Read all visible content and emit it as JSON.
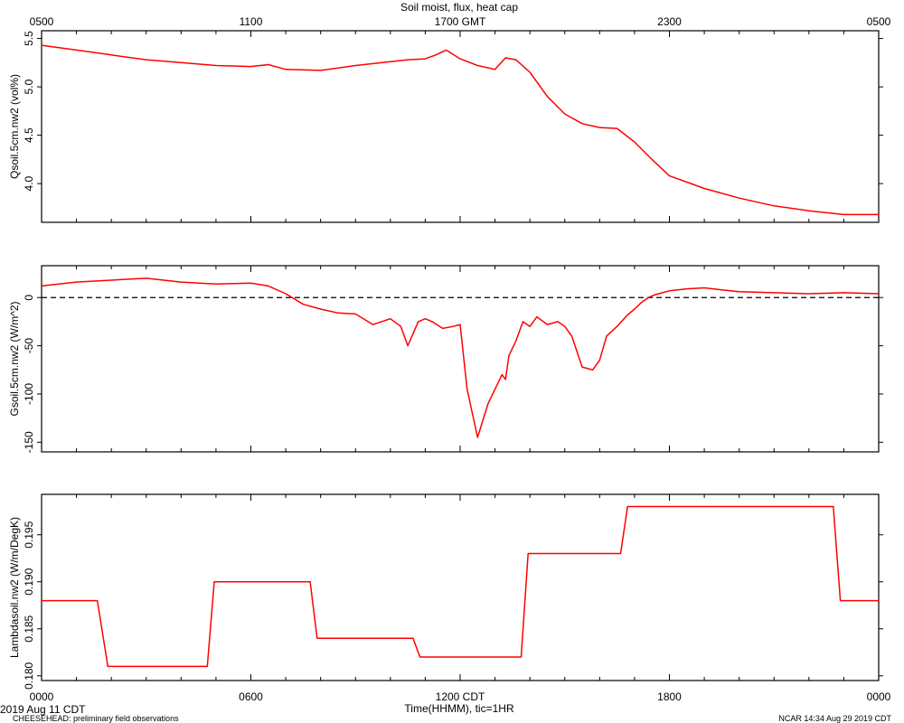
{
  "title": "Soil moist, flux, heat cap",
  "top_axis": {
    "label_suffix": "GMT",
    "ticks": [
      "0500",
      "1100",
      "1700",
      "2300",
      "0500"
    ]
  },
  "bottom_axis": {
    "label": "Time(HHMM), tic=1HR",
    "ticks": [
      "0000",
      "0600",
      "1200 CDT",
      "1800",
      "0000"
    ]
  },
  "footer": {
    "left_date": "2019 Aug 11 CDT",
    "left_project": "CHEESEHEAD: preliminary field observations",
    "right": "NCAR 14:34 Aug 29 2019 CDT"
  },
  "line_color": "#ff0000",
  "chart_data": [
    {
      "type": "line",
      "ylabel": "Qsoil.5cm.nw2 (vol%)",
      "ylim": [
        3.6,
        5.58
      ],
      "yticks": [
        4.0,
        4.5,
        5.0,
        5.5
      ],
      "ytick_labels": [
        "4.0",
        "4.5",
        "5.0",
        "5.5"
      ],
      "x_hours": [
        0,
        1,
        2,
        3,
        4,
        5,
        6,
        6.5,
        7,
        8,
        9,
        10,
        10.5,
        11,
        11.3,
        11.6,
        12,
        12.5,
        13,
        13.3,
        13.6,
        14,
        14.5,
        15,
        15.5,
        16,
        16.5,
        17,
        17.5,
        18,
        19,
        20,
        21,
        22,
        23,
        24
      ],
      "values": [
        5.43,
        5.38,
        5.33,
        5.28,
        5.25,
        5.22,
        5.21,
        5.23,
        5.18,
        5.17,
        5.22,
        5.26,
        5.28,
        5.29,
        5.33,
        5.38,
        5.29,
        5.22,
        5.18,
        5.3,
        5.28,
        5.15,
        4.9,
        4.72,
        4.62,
        4.58,
        4.57,
        4.43,
        4.25,
        4.08,
        3.95,
        3.85,
        3.77,
        3.72,
        3.68,
        3.68
      ]
    },
    {
      "type": "line",
      "ylabel": "Gsoil.5cm.nw2 (W/m^2)",
      "ylim": [
        -160,
        33
      ],
      "yticks": [
        -150,
        -100,
        -50,
        0
      ],
      "ytick_labels": [
        "-150",
        "-100",
        "-50",
        "0"
      ],
      "reference_line": 0,
      "x_hours": [
        0,
        1,
        2,
        3,
        4,
        5,
        6,
        6.5,
        7,
        7.5,
        8,
        8.5,
        9,
        9.5,
        10,
        10.3,
        10.5,
        10.8,
        11,
        11.2,
        11.5,
        11.8,
        12,
        12.2,
        12.5,
        12.8,
        13,
        13.2,
        13.3,
        13.4,
        13.6,
        13.8,
        14,
        14.2,
        14.5,
        14.8,
        15,
        15.2,
        15.5,
        15.8,
        16,
        16.2,
        16.5,
        16.8,
        17,
        17.2,
        17.4,
        17.6,
        17.8,
        18,
        18.5,
        19,
        19.5,
        20,
        21,
        22,
        23,
        24
      ],
      "values": [
        12,
        16,
        18,
        20,
        16,
        14,
        15,
        12,
        4,
        -7,
        -12,
        -16,
        -17,
        -28,
        -22,
        -30,
        -50,
        -25,
        -22,
        -25,
        -32,
        -30,
        -28,
        -95,
        -145,
        -110,
        -95,
        -80,
        -85,
        -60,
        -45,
        -25,
        -30,
        -20,
        -28,
        -25,
        -30,
        -40,
        -72,
        -75,
        -65,
        -40,
        -30,
        -18,
        -12,
        -5,
        0,
        3,
        5,
        7,
        9,
        10,
        8,
        6,
        5,
        4,
        5,
        4
      ]
    },
    {
      "type": "line",
      "ylabel": "Lambdasoil.nw2 (W/m/DegK)",
      "ylim": [
        0.1795,
        0.1993
      ],
      "yticks": [
        0.18,
        0.185,
        0.19,
        0.195
      ],
      "ytick_labels": [
        "0.180",
        "0.185",
        "0.190",
        "0.195"
      ],
      "x_hours": [
        0,
        1.6,
        1.9,
        4.75,
        4.95,
        7.7,
        7.9,
        10.65,
        10.85,
        13.75,
        13.95,
        16.6,
        16.8,
        22.7,
        22.9,
        24
      ],
      "values": [
        0.188,
        0.188,
        0.181,
        0.181,
        0.19,
        0.19,
        0.184,
        0.184,
        0.182,
        0.182,
        0.193,
        0.193,
        0.198,
        0.198,
        0.188,
        0.188
      ]
    }
  ]
}
